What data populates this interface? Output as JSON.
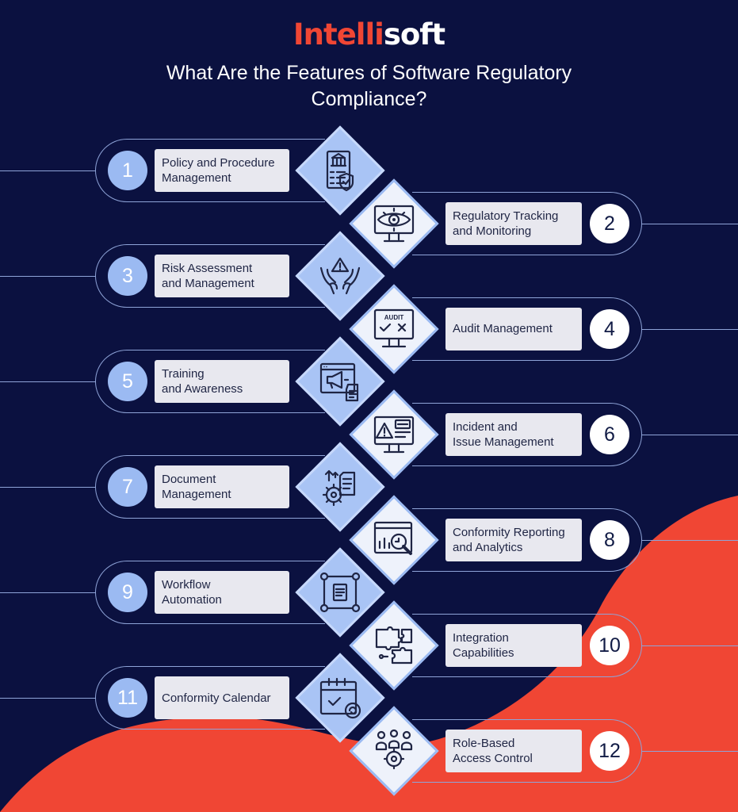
{
  "brand": {
    "part1": "Intelli",
    "part2": "soft"
  },
  "title": "What Are the Features of Software Regulatory Compliance?",
  "colors": {
    "background": "#0b1140",
    "accent": "#f04634",
    "circle_blue": "#9bbaf2",
    "label_bg": "#e8e8ef",
    "outline": "#8fa4d8"
  },
  "features": [
    {
      "number": "1",
      "label": "Policy and Procedure\nManagement",
      "icon": "policy-document-icon"
    },
    {
      "number": "2",
      "label": "Regulatory Tracking\nand Monitoring",
      "icon": "monitor-eye-icon"
    },
    {
      "number": "3",
      "label": "Risk Assessment\nand Management",
      "icon": "hands-warning-icon"
    },
    {
      "number": "4",
      "label": "Audit Management",
      "icon": "audit-monitor-icon"
    },
    {
      "number": "5",
      "label": "Training\nand Awareness",
      "icon": "browser-megaphone-icon"
    },
    {
      "number": "6",
      "label": "Incident and\nIssue Management",
      "icon": "monitor-alert-icon"
    },
    {
      "number": "7",
      "label": "Document\nManagement",
      "icon": "gear-document-icon"
    },
    {
      "number": "8",
      "label": "Conformity Reporting\nand Analytics",
      "icon": "chart-magnifier-icon"
    },
    {
      "number": "9",
      "label": "Workflow\nAutomation",
      "icon": "workflow-icon"
    },
    {
      "number": "10",
      "label": "Integration\nCapabilities",
      "icon": "puzzle-icon"
    },
    {
      "number": "11",
      "label": "Conformity Calendar",
      "icon": "calendar-icon"
    },
    {
      "number": "12",
      "label": "Role-Based\nAccess Control",
      "icon": "team-gear-icon"
    }
  ]
}
